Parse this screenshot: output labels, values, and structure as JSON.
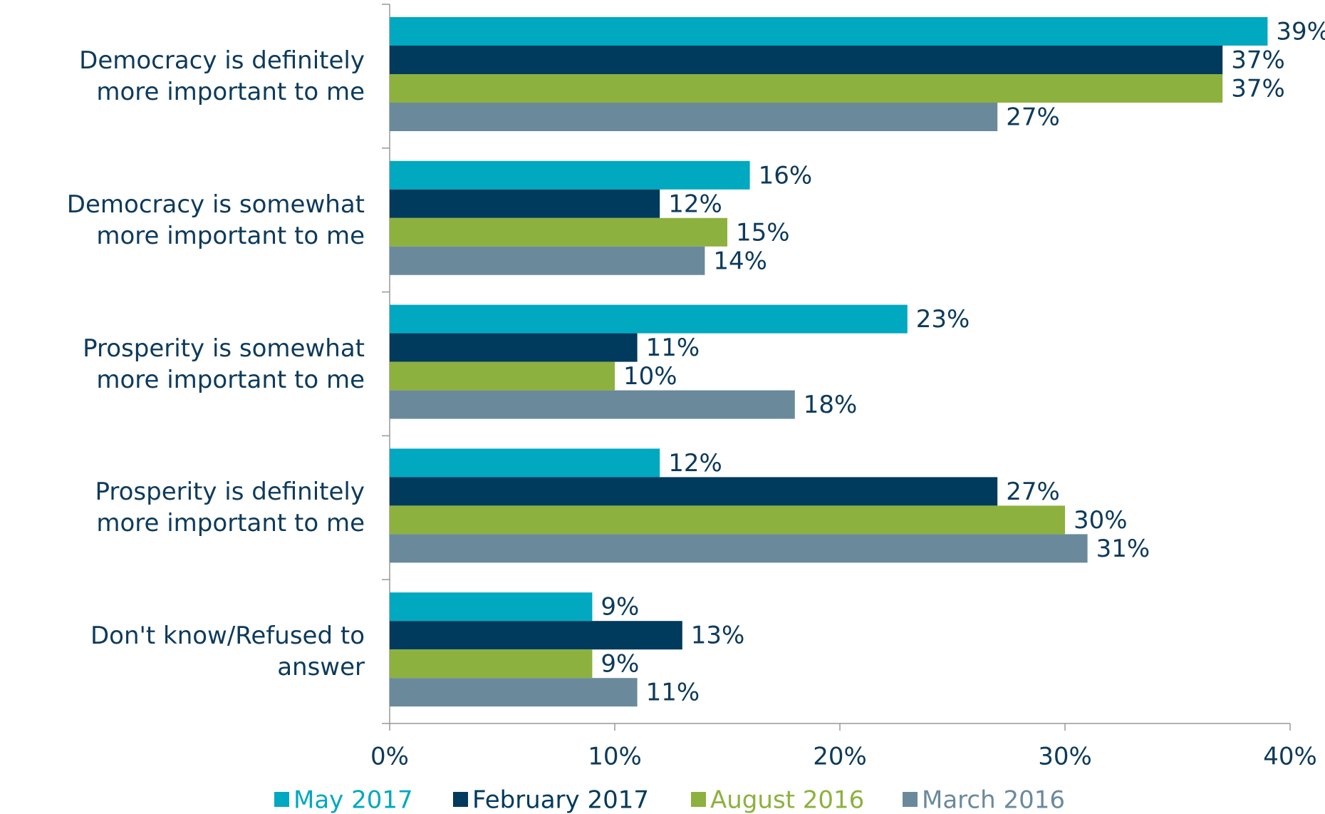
{
  "chart_data": {
    "type": "bar",
    "orientation": "horizontal",
    "categories": [
      "Democracy is definitely\nmore important to me",
      "Democracy is somewhat\nmore important to me",
      "Prosperity is somewhat\nmore important to me",
      "Prosperity is definitely\nmore important to me",
      "Don't know/Refused to answer"
    ],
    "series": [
      {
        "name": "May 2017",
        "color": "#00a8c0",
        "values": [
          39,
          16,
          23,
          12,
          9
        ],
        "value_labels": [
          "39%",
          "16%",
          "23%",
          "12%",
          "9%"
        ]
      },
      {
        "name": "February 2017",
        "color": "#003a5c",
        "values": [
          37,
          12,
          11,
          27,
          13
        ],
        "value_labels": [
          "37%",
          "12%",
          "11%",
          "27%",
          "13%"
        ]
      },
      {
        "name": "August 2016",
        "color": "#8db13e",
        "values": [
          37,
          15,
          10,
          30,
          9
        ],
        "value_labels": [
          "37%",
          "15%",
          "10%",
          "30%",
          "9%"
        ]
      },
      {
        "name": "March 2016",
        "color": "#6a8a9c",
        "values": [
          27,
          14,
          18,
          31,
          11
        ],
        "value_labels": [
          "27%",
          "14%",
          "18%",
          "31%",
          "11%"
        ]
      }
    ],
    "xlim": [
      0,
      40
    ],
    "xticks": [
      {
        "value": 0,
        "label": "0%"
      },
      {
        "value": 10,
        "label": "10%"
      },
      {
        "value": 20,
        "label": "20%"
      },
      {
        "value": 30,
        "label": "30%"
      },
      {
        "value": 40,
        "label": "40%"
      }
    ],
    "legend": "bottom"
  }
}
